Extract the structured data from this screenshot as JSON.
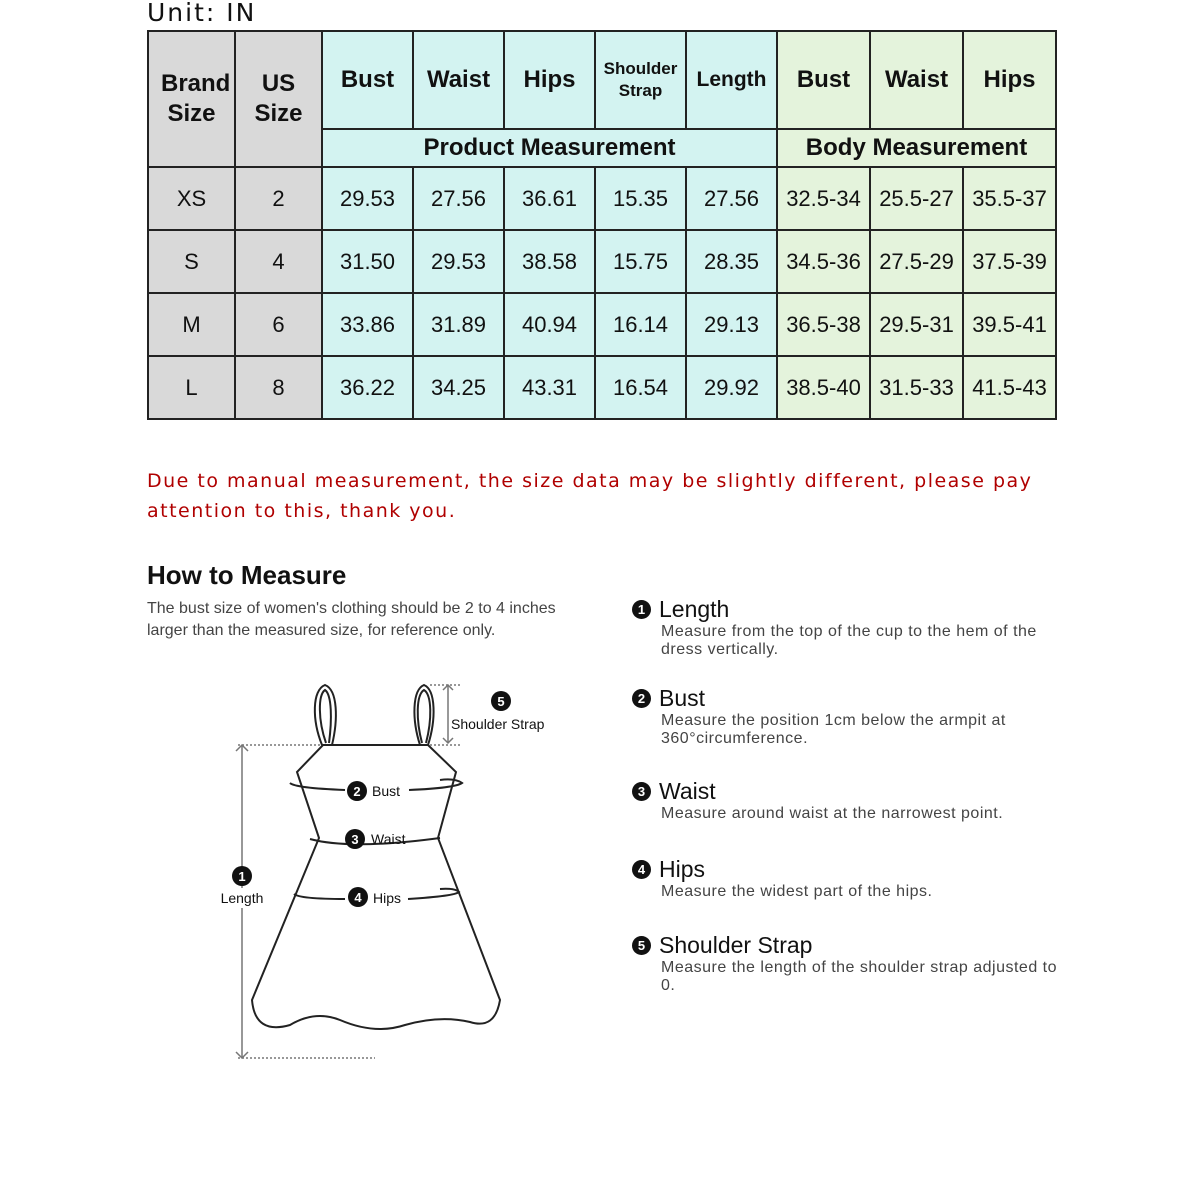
{
  "unit_label": "Unit: IN",
  "table": {
    "headers": [
      "Brand Size",
      "US Size",
      "Bust",
      "Waist",
      "Hips",
      "Shoulder Strap",
      "Length",
      "Bust",
      "Waist",
      "Hips"
    ],
    "groups": [
      "Product Measurement",
      "Body Measurement"
    ],
    "rows": [
      [
        "XS",
        "2",
        "29.53",
        "27.56",
        "36.61",
        "15.35",
        "27.56",
        "32.5-34",
        "25.5-27",
        "35.5-37"
      ],
      [
        "S",
        "4",
        "31.50",
        "29.53",
        "38.58",
        "15.75",
        "28.35",
        "34.5-36",
        "27.5-29",
        "37.5-39"
      ],
      [
        "M",
        "6",
        "33.86",
        "31.89",
        "40.94",
        "16.14",
        "29.13",
        "36.5-38",
        "29.5-31",
        "39.5-41"
      ],
      [
        "L",
        "8",
        "36.22",
        "34.25",
        "43.31",
        "16.54",
        "29.92",
        "38.5-40",
        "31.5-33",
        "41.5-43"
      ]
    ],
    "colors": {
      "size_bg": "#d9d9d9",
      "product_bg": "#d3f3f1",
      "body_bg": "#e4f3dc"
    }
  },
  "note": "Due to manual measurement, the size data may be slightly different, please pay attention to this, thank you.",
  "how_to": {
    "title": "How to Measure",
    "desc": "The bust size of women's clothing should be 2 to 4 inches larger than the measured size, for reference only.",
    "items": [
      {
        "n": "1",
        "title": "Length",
        "desc": "Measure from the top of the cup to the hem of the dress vertically."
      },
      {
        "n": "2",
        "title": "Bust",
        "desc": "Measure the position 1cm below the armpit at 360°circumference."
      },
      {
        "n": "3",
        "title": "Waist",
        "desc": "Measure around waist at the narrowest point."
      },
      {
        "n": "4",
        "title": "Hips",
        "desc": "Measure the widest part of the hips."
      },
      {
        "n": "5",
        "title": "Shoulder Strap",
        "desc": "Measure the length of the shoulder strap adjusted to 0."
      }
    ],
    "diagram": {
      "length": "Length",
      "bust": "Bust",
      "waist": "Waist",
      "hips": "Hips",
      "strap": "Shoulder Strap"
    }
  }
}
